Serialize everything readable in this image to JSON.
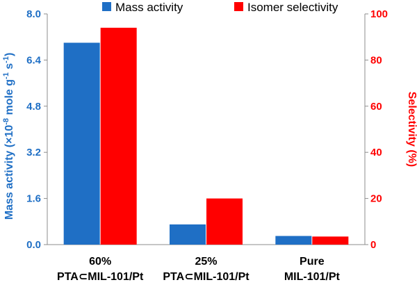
{
  "chart_data": {
    "type": "bar",
    "categories": [
      [
        "60%",
        "PTA⊂MIL-101/Pt"
      ],
      [
        "25%",
        "PTA⊂MIL-101/Pt"
      ],
      [
        "Pure",
        "MIL-101/Pt"
      ]
    ],
    "series": [
      {
        "name": "Mass activity",
        "axis": "left",
        "color": "#1f6fc5",
        "values": [
          7.0,
          0.7,
          0.3
        ]
      },
      {
        "name": "Isomer selectivity",
        "axis": "right",
        "color": "#ff0000",
        "values": [
          94,
          20,
          3.5
        ]
      }
    ],
    "left_axis": {
      "label_parts": [
        "Mass activity (×10",
        "-8",
        " mole g",
        "-1",
        " s",
        "-1",
        ")"
      ],
      "ticks": [
        "0.0",
        "1.6",
        "3.2",
        "4.8",
        "6.4",
        "8.0"
      ],
      "ylim": [
        0,
        8.0
      ],
      "color": "#1f6fc5"
    },
    "right_axis": {
      "label": "Selectivity (%)",
      "ticks": [
        "0",
        "20",
        "40",
        "60",
        "80",
        "100"
      ],
      "ylim": [
        0,
        100
      ],
      "color": "#ff0000"
    },
    "legend_position": "top",
    "grid": false
  }
}
